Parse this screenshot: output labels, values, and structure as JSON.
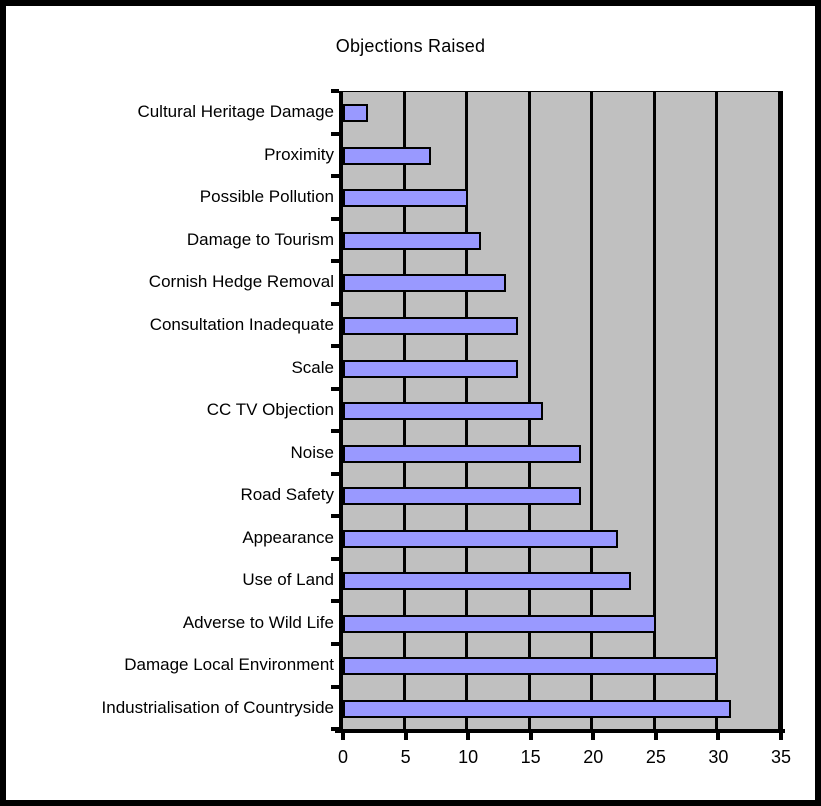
{
  "chart_data": {
    "type": "bar",
    "orientation": "horizontal",
    "title": "Objections Raised",
    "category_order": "top-to-bottom",
    "categories": [
      "Cultural Heritage Damage",
      "Proximity",
      "Possible Pollution",
      "Damage to Tourism",
      "Cornish Hedge Removal",
      "Consultation Inadequate",
      "Scale",
      "CC TV Objection",
      "Noise",
      "Road Safety",
      "Appearance",
      "Use of Land",
      "Adverse to Wild Life",
      "Damage Local Environment",
      "Industrialisation of Countryside"
    ],
    "values": [
      2,
      7,
      10,
      11,
      13,
      14,
      14,
      16,
      19,
      19,
      22,
      23,
      25,
      30,
      31
    ],
    "xlabel": "",
    "ylabel": "",
    "xlim": [
      0,
      35
    ],
    "xticks": [
      0,
      5,
      10,
      15,
      20,
      25,
      30,
      35
    ],
    "grid": true,
    "legend": null,
    "colors": {
      "bar_fill": "#9999FF",
      "bar_border": "#000000",
      "plot_background": "#C0C0C0",
      "gridline": "#000000",
      "axis": "#000000",
      "frame_border": "#000000",
      "background": "#FFFFFF",
      "text": "#000000"
    }
  }
}
